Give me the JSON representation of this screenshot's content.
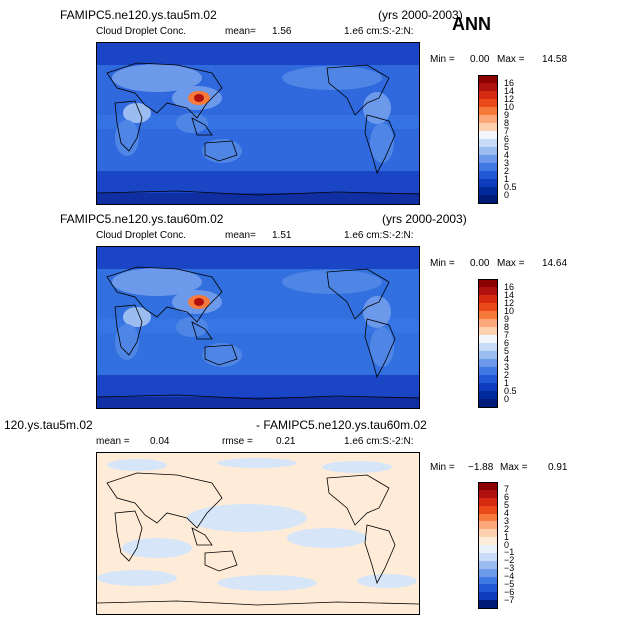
{
  "badge": "ANN",
  "panels": [
    {
      "case_title": "FAMIPC5.ne120.ys.tau5m.02",
      "years": "(yrs 2000-2003)",
      "field": "Cloud Droplet Conc.",
      "mean_label": "mean=",
      "mean_value": "1.56",
      "units": "1.e6 cm:S:-2:N:",
      "min_label": "Min =",
      "min_value": "0.00",
      "max_label": "Max =",
      "max_value": "14.58",
      "colorbar": [
        "16",
        "14",
        "12",
        "10",
        "9",
        "8",
        "7",
        "6",
        "5",
        "4",
        "3",
        "2",
        "1",
        "0.5",
        "0"
      ]
    },
    {
      "case_title": "FAMIPC5.ne120.ys.tau60m.02",
      "years": "(yrs 2000-2003)",
      "field": "Cloud Droplet Conc.",
      "mean_label": "mean=",
      "mean_value": "1.51",
      "units": "1.e6 cm:S:-2:N:",
      "min_label": "Min =",
      "min_value": "0.00",
      "max_label": "Max =",
      "max_value": "14.64",
      "colorbar": [
        "16",
        "14",
        "12",
        "10",
        "9",
        "8",
        "7",
        "6",
        "5",
        "4",
        "3",
        "2",
        "1",
        "0.5",
        "0"
      ]
    },
    {
      "left_title": "120.ys.tau5m.02",
      "right_title": "- FAMIPC5.ne120.ys.tau60m.02",
      "mean_label": "mean =",
      "mean_value": "0.04",
      "rmse_label": "rmse =",
      "rmse_value": "0.21",
      "units": "1.e6 cm:S:-2:N:",
      "min_label": "Min =",
      "min_value": "−1.88",
      "max_label": "Max =",
      "max_value": "0.91",
      "colorbar": [
        "7",
        "6",
        "5",
        "4",
        "3",
        "2",
        "1",
        "0",
        "−1",
        "−2",
        "−3",
        "−4",
        "−5",
        "−6",
        "−7"
      ]
    }
  ],
  "colors": {
    "abs_scale": [
      "#8b0000",
      "#b01010",
      "#d42b10",
      "#ea4a1a",
      "#f77a3a",
      "#fca67a",
      "#fdd1b0",
      "#f3f6fb",
      "#c9dcf7",
      "#9bbcf0",
      "#6c99ea",
      "#4079e4",
      "#2158d4",
      "#0d3cbc",
      "#002a9c",
      "#001a78"
    ],
    "diff_scale": [
      "#8b0000",
      "#b01010",
      "#d42b10",
      "#ea4a1a",
      "#f77a3a",
      "#fca67a",
      "#fdd1b0",
      "#ffecd8",
      "#eaf2fb",
      "#c9dcf7",
      "#9bbcf0",
      "#6c99ea",
      "#4079e4",
      "#2158d4",
      "#0d3cbc",
      "#001a78"
    ]
  }
}
